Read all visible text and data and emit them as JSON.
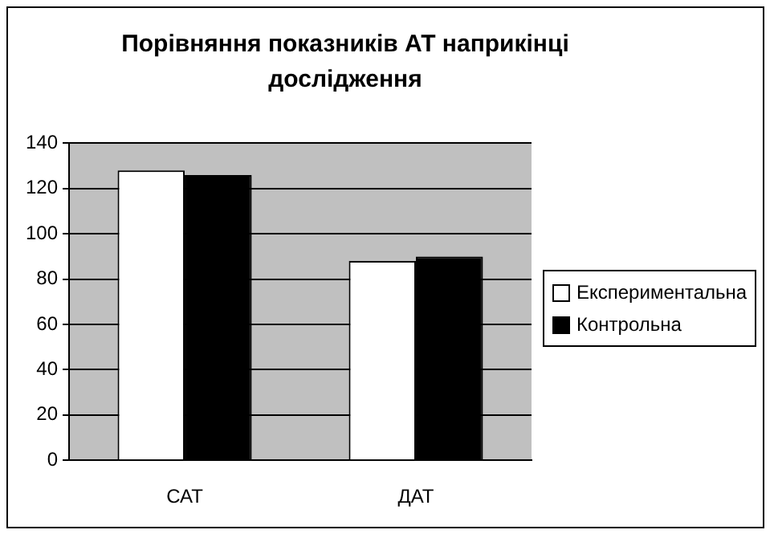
{
  "chart_data": {
    "type": "bar",
    "title": "Порівняння показників АТ наприкінці дослідження",
    "categories": [
      "САТ",
      "ДАТ"
    ],
    "series": [
      {
        "name": "Експериментальна",
        "color": "#ffffff",
        "values": [
          128,
          88
        ]
      },
      {
        "name": "Контрольна",
        "color": "#000000",
        "values": [
          126,
          90
        ]
      }
    ],
    "ylim": [
      0,
      140
    ],
    "yticks": [
      0,
      20,
      40,
      60,
      80,
      100,
      120,
      140
    ],
    "grid": "y",
    "legend": "right"
  }
}
